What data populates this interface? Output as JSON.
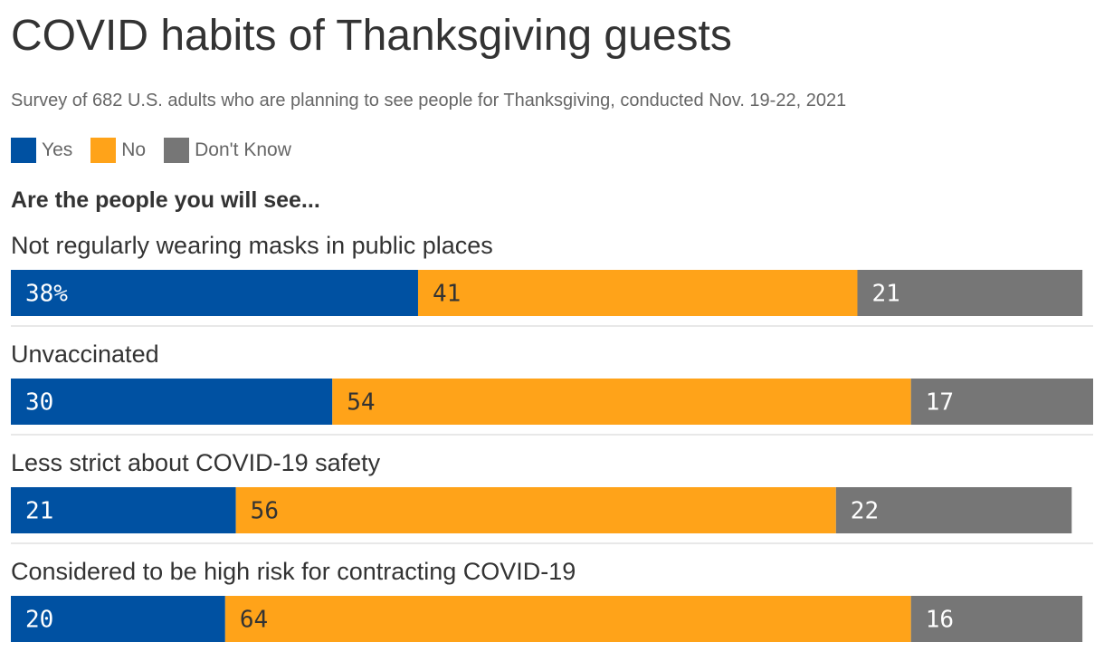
{
  "title": "COVID habits of Thanksgiving guests",
  "subtitle": "Survey of 682 U.S. adults who are planning to see people for Thanksgiving, conducted Nov. 19-22, 2021",
  "question": "Are the people you will see...",
  "legend": [
    {
      "label": "Yes",
      "color": "#0051a2"
    },
    {
      "label": "No",
      "color": "#ffa319"
    },
    {
      "label": "Don't Know",
      "color": "#767676"
    }
  ],
  "chart_data": {
    "type": "bar",
    "stacked": true,
    "orientation": "horizontal",
    "categories": [
      "Not regularly wearing masks in public places",
      "Unvaccinated",
      "Less strict about COVID-19 safety",
      "Considered to be high risk for contracting COVID-19"
    ],
    "series": [
      {
        "name": "Yes",
        "color": "#0051a2",
        "values": [
          38,
          30,
          21,
          20
        ],
        "labels": [
          "38%",
          "30",
          "21",
          "20"
        ]
      },
      {
        "name": "No",
        "color": "#ffa319",
        "values": [
          41,
          54,
          56,
          64
        ],
        "labels": [
          "41",
          "54",
          "56",
          "64"
        ]
      },
      {
        "name": "Don't Know",
        "color": "#767676",
        "values": [
          21,
          17,
          22,
          16
        ],
        "labels": [
          "21",
          "17",
          "22",
          "16"
        ]
      }
    ],
    "xlim": [
      0,
      101
    ],
    "grid": false,
    "legend_position": "top-left"
  }
}
